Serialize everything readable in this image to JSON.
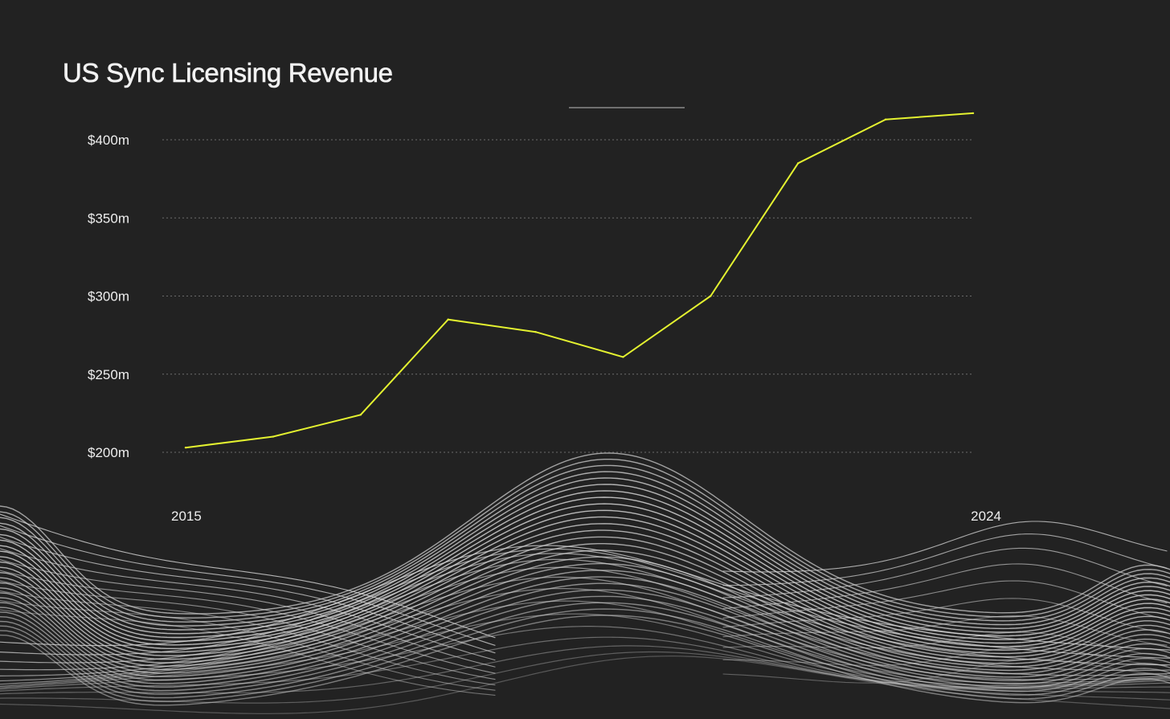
{
  "colors": {
    "background": "#222222",
    "line": "#e4f230",
    "grid": "#6c6c6c",
    "text": "#eeeeee",
    "wave": "#d8d8d8",
    "legend_line": "#8a8a8a"
  },
  "chart_data": {
    "type": "line",
    "title": "US Sync Licensing Revenue",
    "xlabel": "",
    "ylabel": "",
    "x": [
      2015,
      2016,
      2017,
      2018,
      2019,
      2020,
      2021,
      2022,
      2023,
      2024
    ],
    "x_tick_labels": [
      "2015",
      "2024"
    ],
    "y_ticks": [
      200,
      250,
      300,
      350,
      400
    ],
    "y_tick_labels": [
      "$200m",
      "$250m",
      "$300m",
      "$350m",
      "$400m"
    ],
    "ylim": [
      200,
      400
    ],
    "grid": true,
    "series": [
      {
        "name": "US Sync Licensing Revenue",
        "values": [
          203,
          210,
          224,
          285,
          277,
          261,
          300,
          385,
          413,
          417
        ]
      }
    ]
  }
}
